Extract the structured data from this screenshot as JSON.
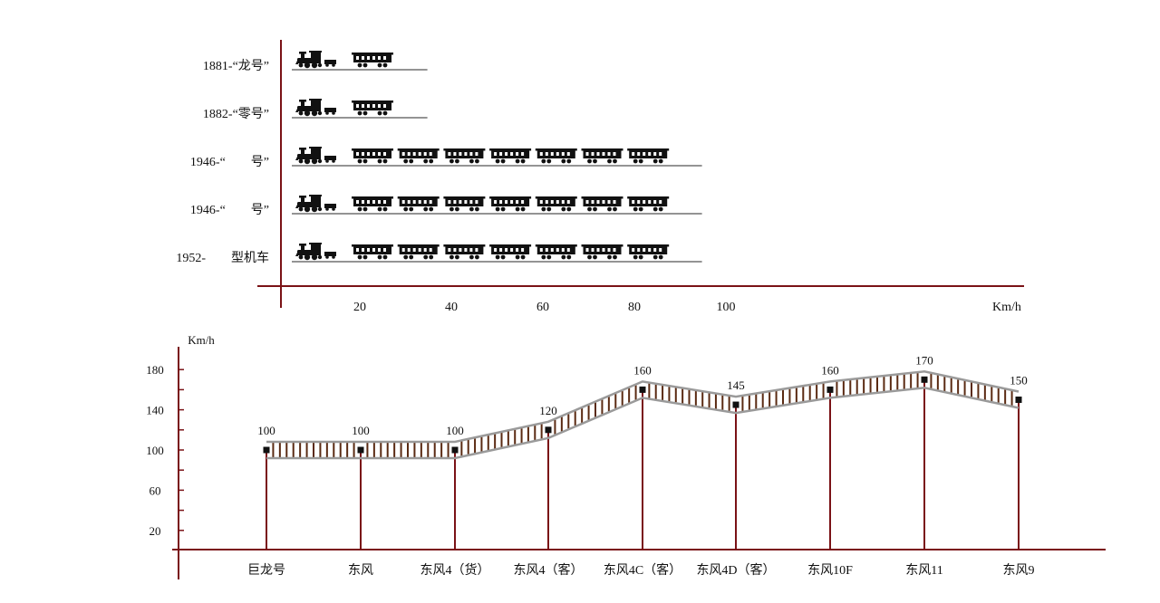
{
  "colors": {
    "axis": "#7a1216",
    "locomotive": "#111111",
    "rail": "#9a9a9a",
    "tie": "#5a2a12",
    "marker": "#111111",
    "text": "#111111"
  },
  "chart_data": [
    {
      "type": "bar",
      "orientation": "horizontal",
      "mark_style": "pictorial train (locomotive + coaches)",
      "categories": [
        "1881-“龙号”",
        "1882-“零号”",
        "1946-“　　号”",
        "1946-“　　号”",
        "1952-　　型机车"
      ],
      "values": [
        32,
        32,
        92,
        92,
        92
      ],
      "xticks": [
        "20",
        "40",
        "60",
        "80",
        "100"
      ],
      "xtick_values": [
        20,
        40,
        60,
        80,
        100
      ],
      "xlabel": "Km/h",
      "xlim": [
        0,
        130
      ]
    },
    {
      "type": "line",
      "mark_style": "railway track with tie marks",
      "categories": [
        "巨龙号",
        "东风",
        "东风4（货）",
        "东风4（客）",
        "东风4C（客）",
        "东风4D（客）",
        "东风10F",
        "东风11",
        "东风9"
      ],
      "values": [
        100,
        100,
        100,
        120,
        160,
        145,
        160,
        170,
        150
      ],
      "data_labels": [
        "100",
        "100",
        "100",
        "120",
        "160",
        "145",
        "160",
        "170",
        "150"
      ],
      "yticks": [
        "20",
        "60",
        "100",
        "140",
        "180"
      ],
      "ytick_values": [
        20,
        60,
        100,
        140,
        180
      ],
      "ylabel": "Km/h",
      "ylim": [
        0,
        200
      ]
    }
  ]
}
